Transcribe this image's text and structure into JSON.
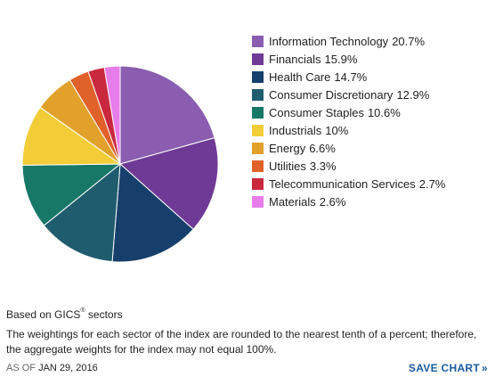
{
  "chart_data": {
    "type": "pie",
    "categories": [
      "Information Technology",
      "Financials",
      "Health Care",
      "Consumer Discretionary",
      "Consumer Staples",
      "Industrials",
      "Energy",
      "Utilities",
      "Telecommunication Services",
      "Materials"
    ],
    "values": [
      20.7,
      15.9,
      14.7,
      12.9,
      10.6,
      10,
      6.6,
      3.3,
      2.7,
      2.6
    ],
    "value_labels": [
      "20.7%",
      "15.9%",
      "14.7%",
      "12.9%",
      "10.6%",
      "10%",
      "6.6%",
      "3.3%",
      "2.7%",
      "2.6%"
    ],
    "colors": [
      "#8a5db0",
      "#6f3a96",
      "#163f6b",
      "#1f5c6e",
      "#187868",
      "#f2cd38",
      "#e2a12a",
      "#e0622a",
      "#c9283f",
      "#e77de8"
    ],
    "legend_placement": "right",
    "start_angle": "12 o'clock, clockwise"
  },
  "footer": {
    "basis_prefix": "Based on GICS",
    "basis_reg": "®",
    "basis_suffix": " sectors",
    "note": "The weightings for each sector of the index are rounded to the nearest tenth of a percent; therefore, the aggregate weights for the index may not equal 100%.",
    "as_of_label": "AS OF",
    "as_of_date": "JAN 29, 2016",
    "save_label": "SAVE CHART",
    "save_icon": "double-chevron-right-icon"
  }
}
